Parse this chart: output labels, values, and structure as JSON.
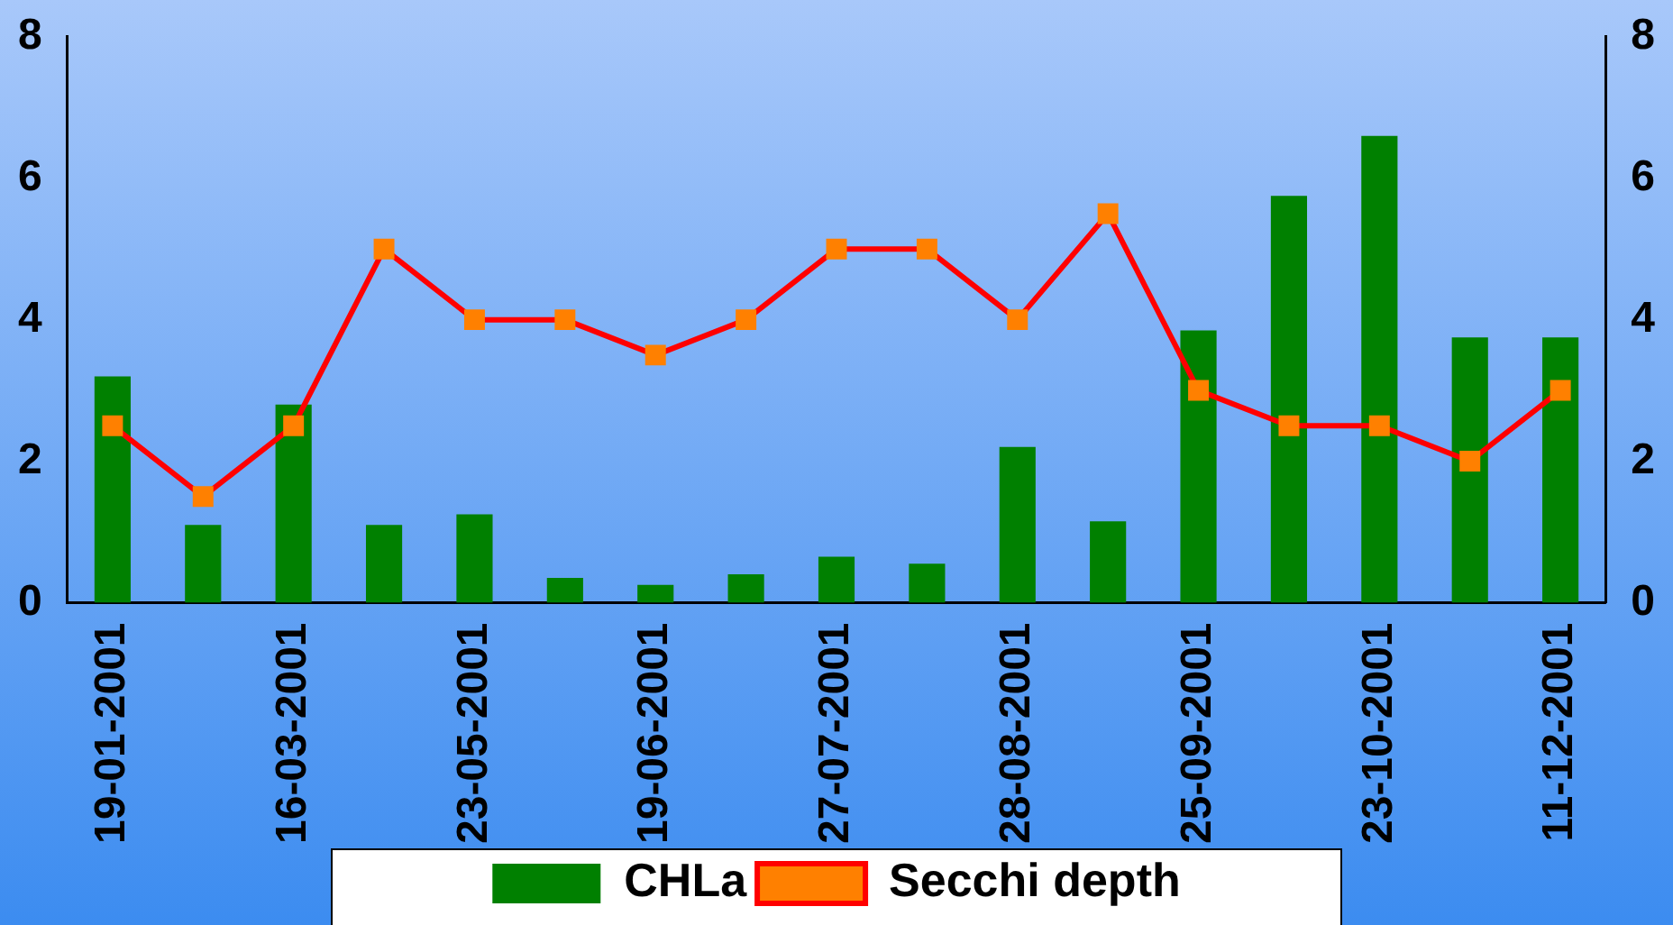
{
  "chart_data": {
    "type": "bar",
    "categories": [
      "19-01-2001",
      null,
      "16-03-2001",
      null,
      "23-05-2001",
      null,
      "19-06-2001",
      null,
      "27-07-2001",
      null,
      "28-08-2001",
      null,
      "25-09-2001",
      null,
      "23-10-2001",
      null,
      "11-12-2001"
    ],
    "series": [
      {
        "name": "CHLa",
        "color": "#008000",
        "values": [
          3.2,
          1.1,
          2.8,
          1.1,
          1.25,
          0.35,
          0.25,
          0.4,
          0.65,
          0.55,
          2.2,
          1.15,
          3.85,
          5.75,
          6.6,
          3.75,
          3.75
        ]
      },
      {
        "name": "Secchi depth",
        "type": "line",
        "axis": "y2",
        "color": "#ff0000",
        "marker": "square",
        "values": [
          2.5,
          1.5,
          2.5,
          5.0,
          4.0,
          4.0,
          3.5,
          4.0,
          5.0,
          5.0,
          4.0,
          5.5,
          3.0,
          2.5,
          2.5,
          2.0,
          3.0
        ]
      }
    ],
    "ylim": [
      0,
      8
    ],
    "yticks": [
      0,
      2,
      4,
      6,
      8
    ],
    "y2lim": [
      0,
      8
    ],
    "y2ticks": [
      0,
      2,
      4,
      6,
      8
    ],
    "grid": false,
    "legend": "bottom"
  }
}
